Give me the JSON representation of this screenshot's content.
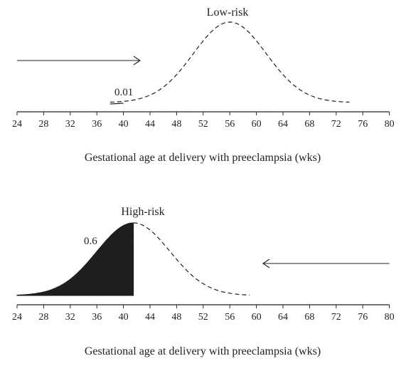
{
  "chart_data": [
    {
      "type": "area",
      "title": "Low-risk",
      "xlabel": "Gestational age at delivery with preeclampsia (wks)",
      "ylabel": "",
      "x_ticks": [
        24,
        28,
        32,
        36,
        40,
        44,
        48,
        52,
        56,
        60,
        64,
        68,
        72,
        76,
        80
      ],
      "xlim": [
        24,
        80
      ],
      "grid": false,
      "legend": "none",
      "distribution": {
        "mean": 56,
        "sd": 5.5,
        "x_start": 38,
        "x_end": 74,
        "line_style": "dashed"
      },
      "shaded_region": {
        "from": 38,
        "to": 40,
        "label": "0.01"
      },
      "arrow": {
        "from": 24,
        "to": 42.5,
        "direction": "right"
      },
      "annotations": [
        "0.01"
      ]
    },
    {
      "type": "area",
      "title": "High-risk",
      "xlabel": "Gestational age at delivery with preeclampsia (wks)",
      "ylabel": "",
      "x_ticks": [
        24,
        28,
        32,
        36,
        40,
        44,
        48,
        52,
        56,
        60,
        64,
        68,
        72,
        76,
        80
      ],
      "xlim": [
        24,
        80
      ],
      "grid": false,
      "legend": "none",
      "distribution": {
        "mean": 41.5,
        "sd": 5.5,
        "x_start": 24,
        "x_end": 59,
        "line_style": "dashed"
      },
      "shaded_region": {
        "from": 24,
        "to": 41.5,
        "label": "0.6",
        "color": "#1e1e1e"
      },
      "arrow": {
        "from": 80,
        "to": 61,
        "direction": "left"
      },
      "annotations": [
        "0.6"
      ]
    }
  ]
}
